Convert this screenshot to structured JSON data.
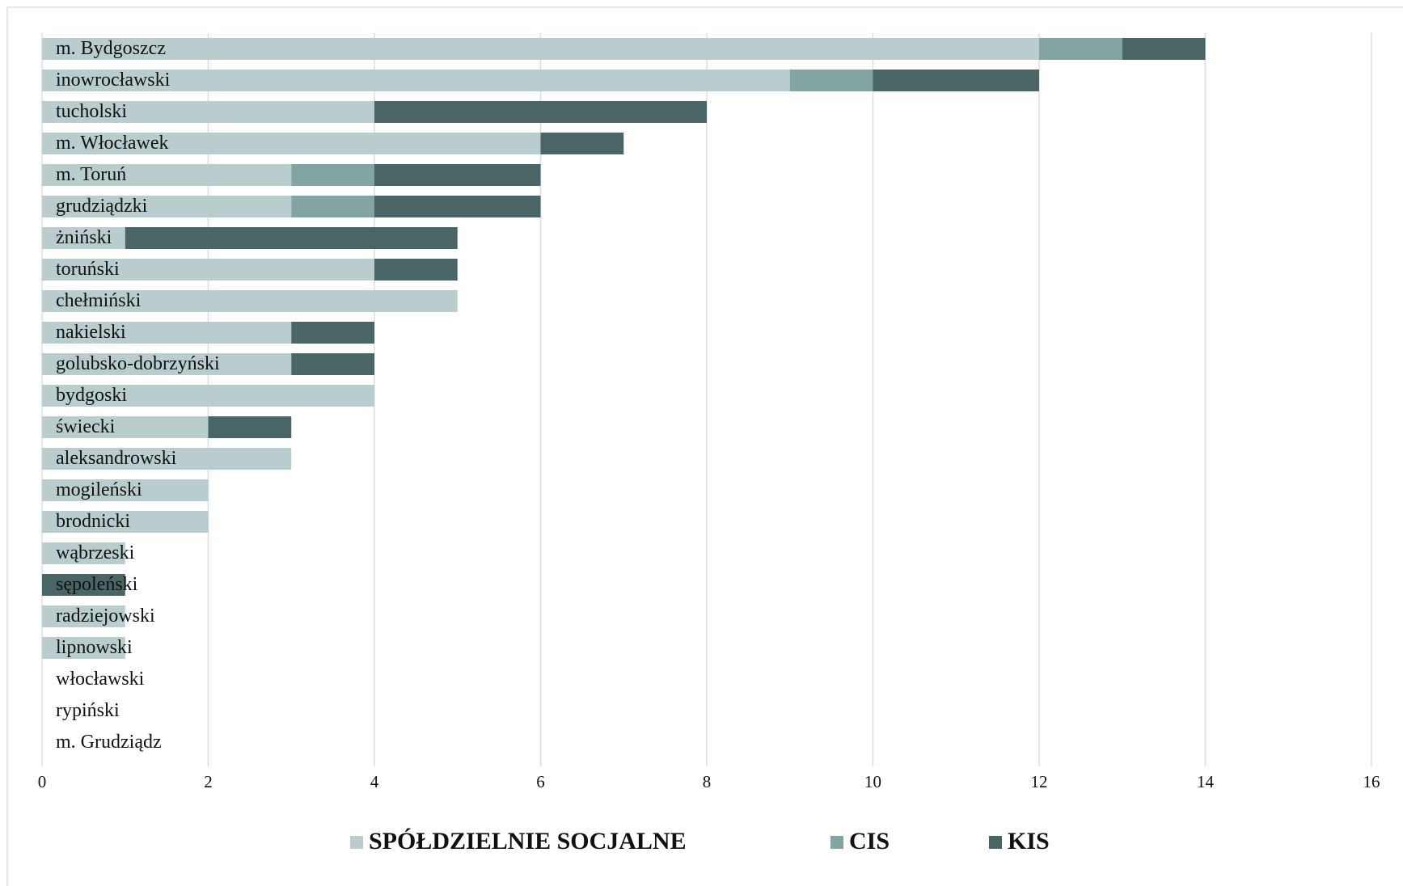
{
  "chart_data": {
    "type": "bar",
    "orientation": "horizontal",
    "stacked": true,
    "categories": [
      "m. Bydgoszcz",
      "inowrocławski",
      "tucholski",
      "m. Włocławek",
      "m. Toruń",
      "grudziądzki",
      "żniński",
      "toruński",
      "chełmiński",
      "nakielski",
      "golubsko-dobrzyński",
      "bydgoski",
      "świecki",
      "aleksandrowski",
      "mogileński",
      "brodnicki",
      "wąbrzeski",
      "sępoleński",
      "radziejowski",
      "lipnowski",
      "włocławski",
      "rypiński",
      "m. Grudziądz"
    ],
    "series": [
      {
        "name": "SPÓŁDZIELNIE SOCJALNE",
        "color": "#b9cdcf",
        "values": [
          12,
          9,
          4,
          6,
          3,
          3,
          1,
          4,
          5,
          3,
          3,
          4,
          2,
          3,
          2,
          2,
          1,
          0,
          1,
          1,
          0,
          0,
          0
        ]
      },
      {
        "name": "CIS",
        "color": "#82a5a3",
        "values": [
          1,
          1,
          0,
          0,
          1,
          1,
          0,
          0,
          0,
          0,
          0,
          0,
          0,
          0,
          0,
          0,
          0,
          0,
          0,
          0,
          0,
          0,
          0
        ]
      },
      {
        "name": "KIS",
        "color": "#4a6566",
        "values": [
          1,
          2,
          4,
          1,
          2,
          2,
          4,
          1,
          0,
          1,
          1,
          0,
          1,
          0,
          0,
          0,
          0,
          1,
          0,
          0,
          0,
          0,
          0
        ]
      }
    ],
    "xlim": [
      0,
      16
    ],
    "xticks": [
      0,
      2,
      4,
      6,
      8,
      10,
      12,
      14,
      16
    ],
    "grid": true,
    "legend": "bottom"
  }
}
